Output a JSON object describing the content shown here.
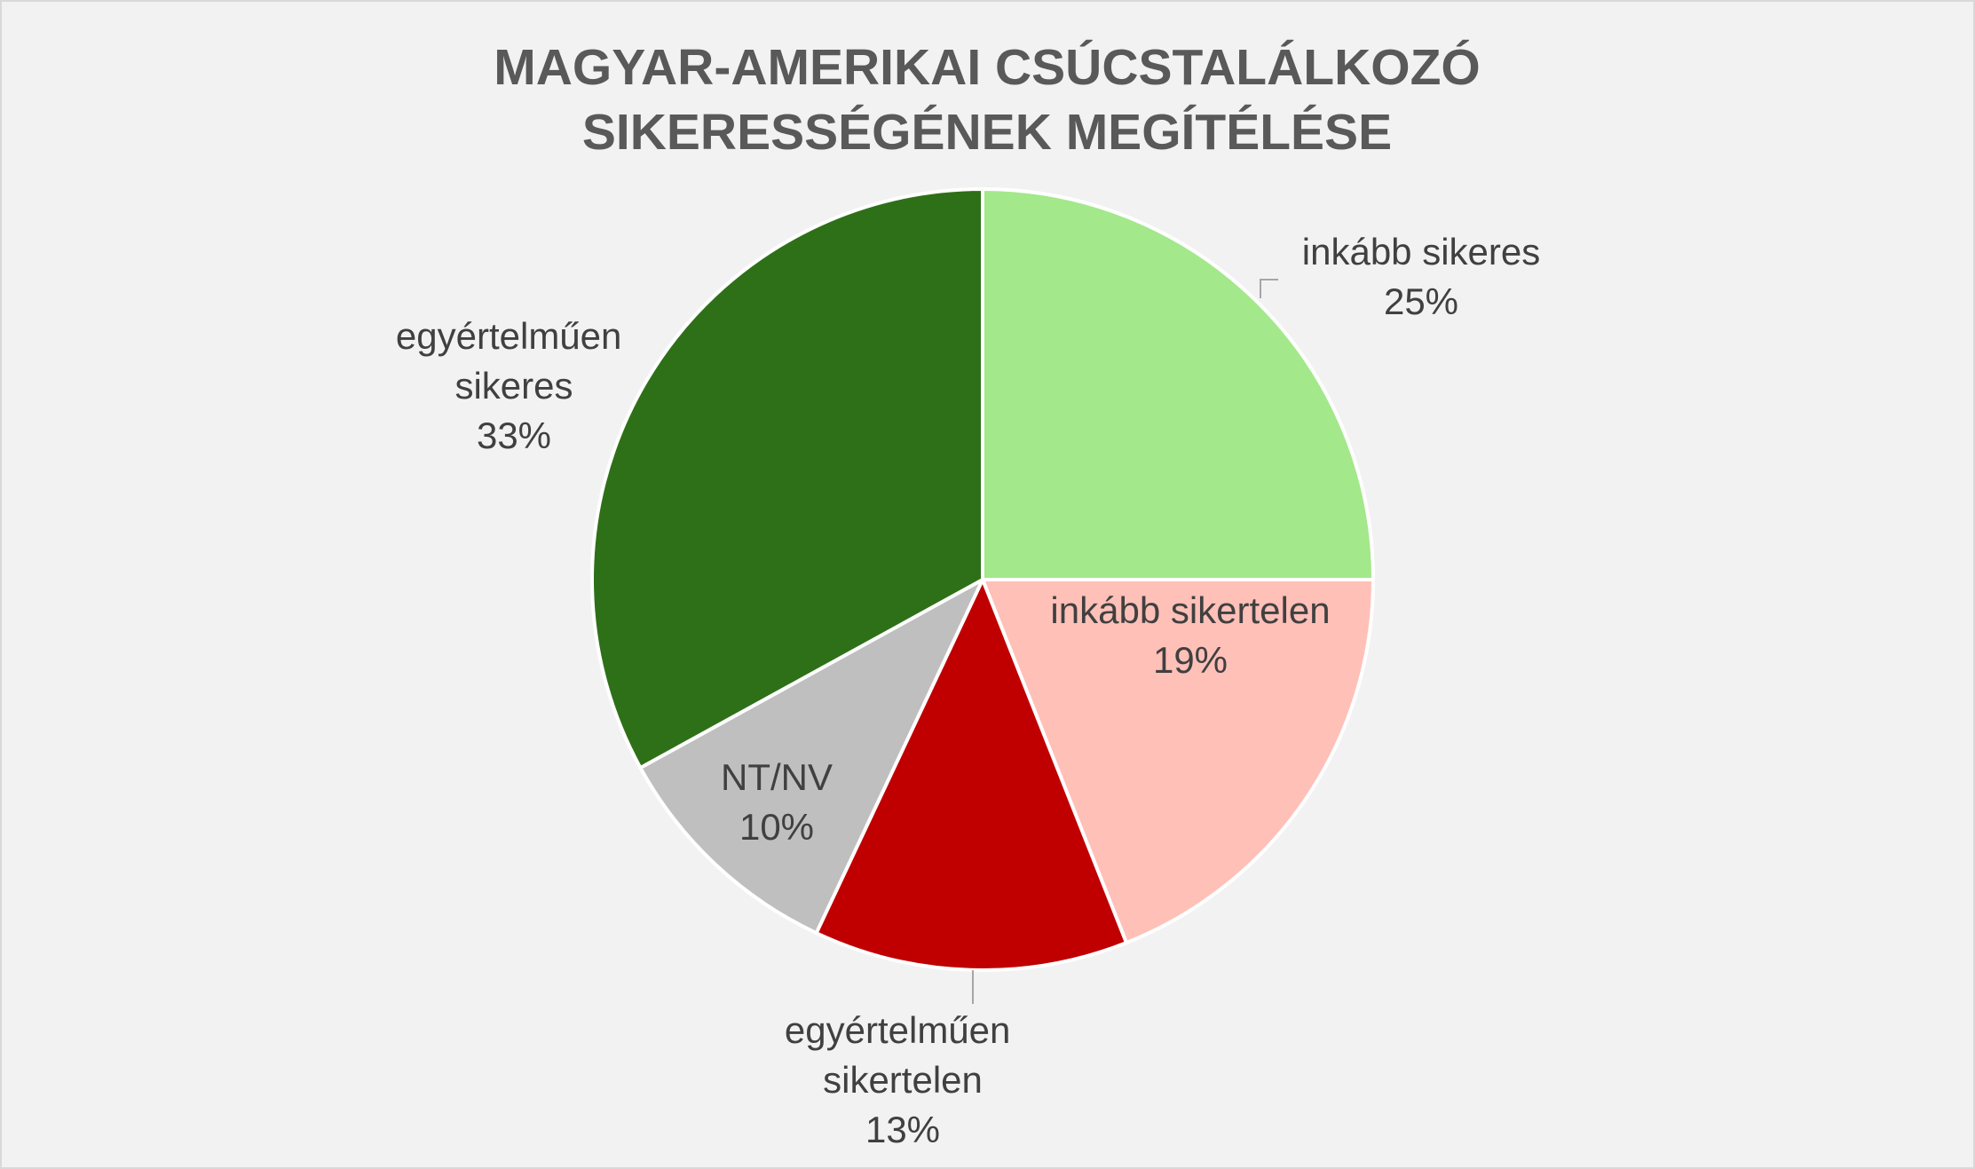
{
  "chart_data": {
    "type": "pie",
    "title": [
      "MAGYAR-AMERIKAI CSÚCSTALÁLKOZÓ",
      "SIKERESSÉGÉNEK MEGÍTÉLÉSE"
    ],
    "categories": [
      "inkább sikeres",
      "inkább sikertelen",
      "egyértelműen sikertelen",
      "NT/NV",
      "egyértelműen sikeres"
    ],
    "values": [
      25,
      19,
      13,
      10,
      33
    ],
    "value_labels": [
      "25%",
      "19%",
      "13%",
      "10%",
      "33%"
    ],
    "colors": [
      "#a3e88a",
      "#ffc0b8",
      "#c00000",
      "#bfbfbf",
      "#2e7018"
    ]
  }
}
